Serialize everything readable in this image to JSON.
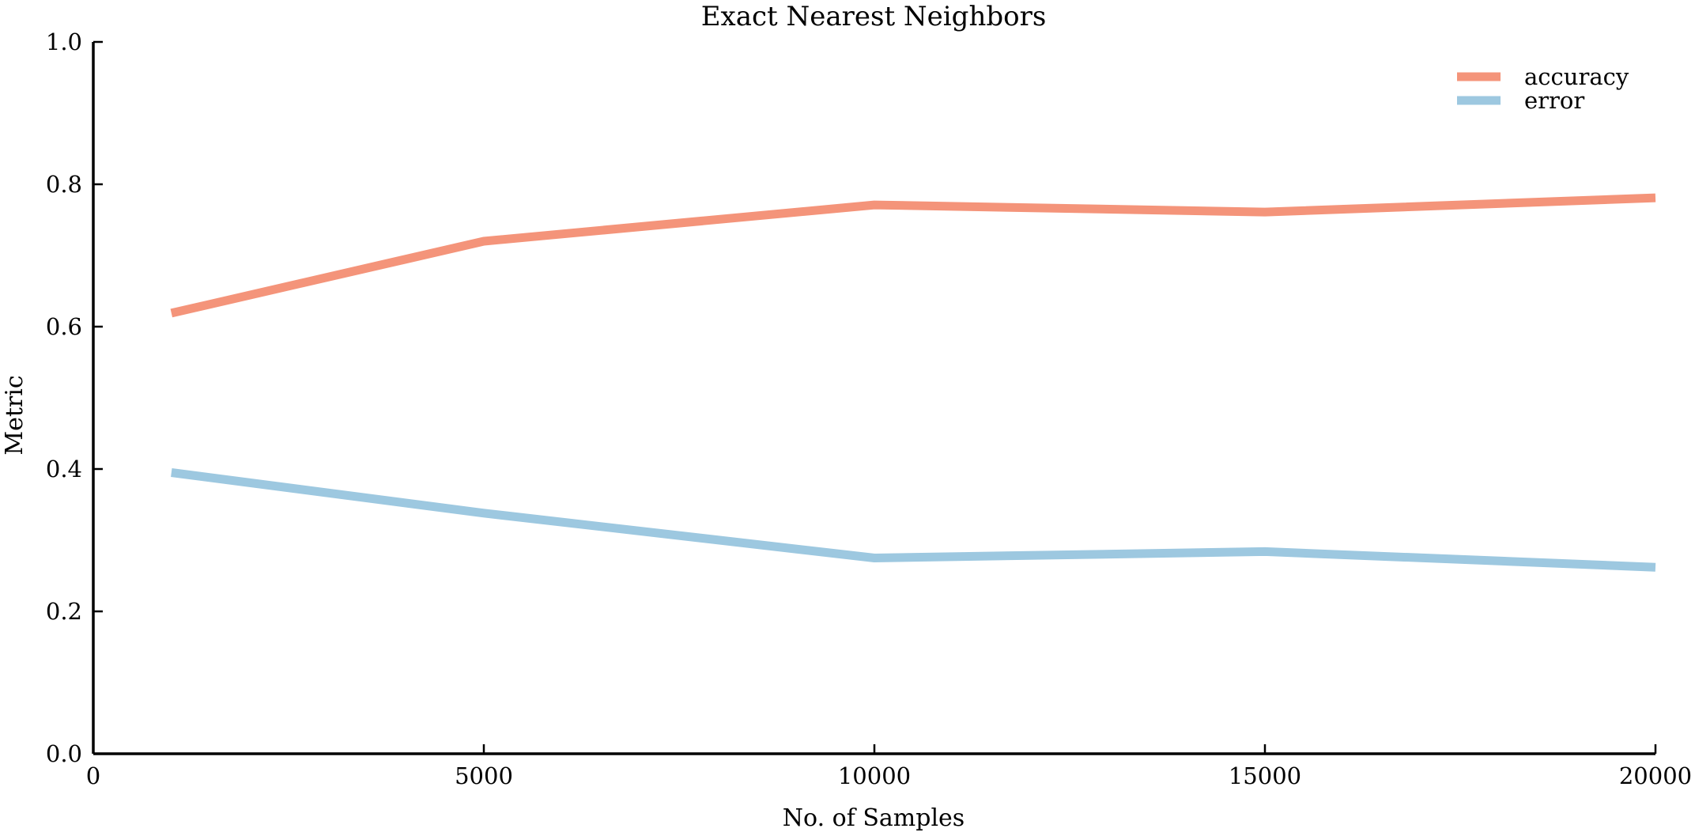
{
  "chart_data": {
    "type": "line",
    "title": "Exact Nearest Neighbors",
    "xlabel": "No. of Samples",
    "ylabel": "Metric",
    "xlim": [
      0,
      20000
    ],
    "ylim": [
      0.0,
      1.0
    ],
    "xticks": [
      0,
      5000,
      10000,
      15000,
      20000
    ],
    "xtick_labels": [
      "0",
      "5000",
      "10000",
      "15000",
      "20000"
    ],
    "yticks": [
      0.0,
      0.2,
      0.4,
      0.6,
      0.8,
      1.0
    ],
    "ytick_labels": [
      "0.0",
      "0.2",
      "0.4",
      "0.6",
      "0.8",
      "1.0"
    ],
    "grid": false,
    "legend_position": "top-right",
    "x": [
      1000,
      5000,
      10000,
      15000,
      20000
    ],
    "series": [
      {
        "name": "accuracy",
        "color": "#f4947a",
        "values": [
          0.619,
          0.72,
          0.771,
          0.761,
          0.781
        ]
      },
      {
        "name": "error",
        "color": "#9dc8e0",
        "values": [
          0.395,
          0.338,
          0.275,
          0.284,
          0.262
        ]
      }
    ]
  }
}
